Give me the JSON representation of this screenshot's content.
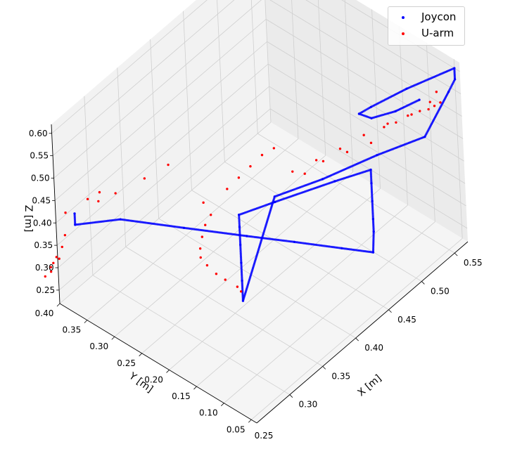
{
  "chart_data": {
    "type": "scatter3d",
    "xlabel": "X [m]",
    "ylabel": "Y [m]",
    "zlabel": "Z [m]",
    "x_ticks": [
      "0.30",
      "0.35",
      "0.40",
      "0.45",
      "0.50",
      "0.55"
    ],
    "y_ticks": [
      "0.05",
      "0.10",
      "0.15",
      "0.20",
      "0.25",
      "0.30",
      "0.35",
      "0.40"
    ],
    "z_ticks": [
      "0.25",
      "0.30",
      "0.35",
      "0.40",
      "0.45",
      "0.50",
      "0.55",
      "0.60"
    ],
    "xlim": [
      0.25,
      0.57
    ],
    "ylim": [
      0.04,
      0.4
    ],
    "zlim": [
      0.22,
      0.62
    ],
    "corner_label": "0.25",
    "legend_position": "top-right",
    "grid": true,
    "series": [
      {
        "name": "Joycon",
        "color": "#0000ff",
        "points": [
          [
            0.27,
            0.39,
            0.403
          ],
          [
            0.27,
            0.39,
            0.378
          ],
          [
            0.3,
            0.343,
            0.387
          ],
          [
            0.34,
            0.276,
            0.367
          ],
          [
            0.38,
            0.21,
            0.347
          ],
          [
            0.41,
            0.16,
            0.333
          ],
          [
            0.44,
            0.11,
            0.318
          ],
          [
            0.46,
            0.077,
            0.308
          ],
          [
            0.48,
            0.1,
            0.312
          ],
          [
            0.48,
            0.1,
            0.34
          ],
          [
            0.48,
            0.1,
            0.38
          ],
          [
            0.48,
            0.1,
            0.42
          ],
          [
            0.48,
            0.1,
            0.45
          ],
          [
            0.45,
            0.13,
            0.44
          ],
          [
            0.4,
            0.18,
            0.42
          ],
          [
            0.37,
            0.21,
            0.407
          ],
          [
            0.37,
            0.21,
            0.38
          ],
          [
            0.37,
            0.21,
            0.34
          ],
          [
            0.37,
            0.21,
            0.3
          ],
          [
            0.37,
            0.21,
            0.26
          ],
          [
            0.37,
            0.21,
            0.215
          ],
          [
            0.4,
            0.18,
            0.432
          ],
          [
            0.44,
            0.14,
            0.45
          ],
          [
            0.49,
            0.1,
            0.47
          ],
          [
            0.53,
            0.06,
            0.49
          ],
          [
            0.56,
            0.05,
            0.56
          ],
          [
            0.57,
            0.05,
            0.575
          ],
          [
            0.57,
            0.05,
            0.6
          ],
          [
            0.53,
            0.09,
            0.575
          ],
          [
            0.5,
            0.12,
            0.55
          ],
          [
            0.49,
            0.13,
            0.54
          ],
          [
            0.5,
            0.12,
            0.525
          ],
          [
            0.52,
            0.1,
            0.53
          ],
          [
            0.54,
            0.08,
            0.545
          ]
        ]
      },
      {
        "name": "U-arm",
        "color": "#ff0000",
        "points": [
          [
            0.28,
            0.42,
            0.37
          ],
          [
            0.27,
            0.41,
            0.34
          ],
          [
            0.265,
            0.41,
            0.32
          ],
          [
            0.26,
            0.415,
            0.3
          ],
          [
            0.255,
            0.42,
            0.28
          ],
          [
            0.255,
            0.42,
            0.27
          ],
          [
            0.25,
            0.425,
            0.262
          ],
          [
            0.255,
            0.415,
            0.293
          ],
          [
            0.26,
            0.41,
            0.3
          ],
          [
            0.29,
            0.37,
            0.42
          ],
          [
            0.3,
            0.35,
            0.44
          ],
          [
            0.32,
            0.32,
            0.47
          ],
          [
            0.34,
            0.3,
            0.49
          ],
          [
            0.3,
            0.38,
            0.42
          ],
          [
            0.29,
            0.39,
            0.41
          ],
          [
            0.35,
            0.25,
            0.43
          ],
          [
            0.37,
            0.23,
            0.45
          ],
          [
            0.38,
            0.22,
            0.47
          ],
          [
            0.39,
            0.21,
            0.49
          ],
          [
            0.4,
            0.2,
            0.51
          ],
          [
            0.41,
            0.19,
            0.52
          ],
          [
            0.36,
            0.25,
            0.39
          ],
          [
            0.355,
            0.255,
            0.37
          ],
          [
            0.352,
            0.258,
            0.345
          ],
          [
            0.35,
            0.26,
            0.32
          ],
          [
            0.35,
            0.26,
            0.3
          ],
          [
            0.355,
            0.255,
            0.28
          ],
          [
            0.36,
            0.245,
            0.262
          ],
          [
            0.365,
            0.235,
            0.25
          ],
          [
            0.372,
            0.222,
            0.235
          ],
          [
            0.374,
            0.218,
            0.225
          ],
          [
            0.42,
            0.17,
            0.47
          ],
          [
            0.44,
            0.15,
            0.485
          ],
          [
            0.46,
            0.13,
            0.5
          ],
          [
            0.48,
            0.11,
            0.52
          ],
          [
            0.5,
            0.09,
            0.535
          ],
          [
            0.52,
            0.07,
            0.545
          ],
          [
            0.54,
            0.06,
            0.555
          ],
          [
            0.55,
            0.06,
            0.565
          ],
          [
            0.51,
            0.11,
            0.5
          ],
          [
            0.52,
            0.1,
            0.505
          ],
          [
            0.53,
            0.09,
            0.515
          ],
          [
            0.54,
            0.08,
            0.52
          ],
          [
            0.545,
            0.07,
            0.525
          ],
          [
            0.55,
            0.065,
            0.53
          ],
          [
            0.555,
            0.06,
            0.535
          ],
          [
            0.49,
            0.11,
            0.49
          ],
          [
            0.47,
            0.13,
            0.48
          ],
          [
            0.45,
            0.15,
            0.47
          ],
          [
            0.43,
            0.16,
            0.46
          ]
        ]
      }
    ]
  }
}
